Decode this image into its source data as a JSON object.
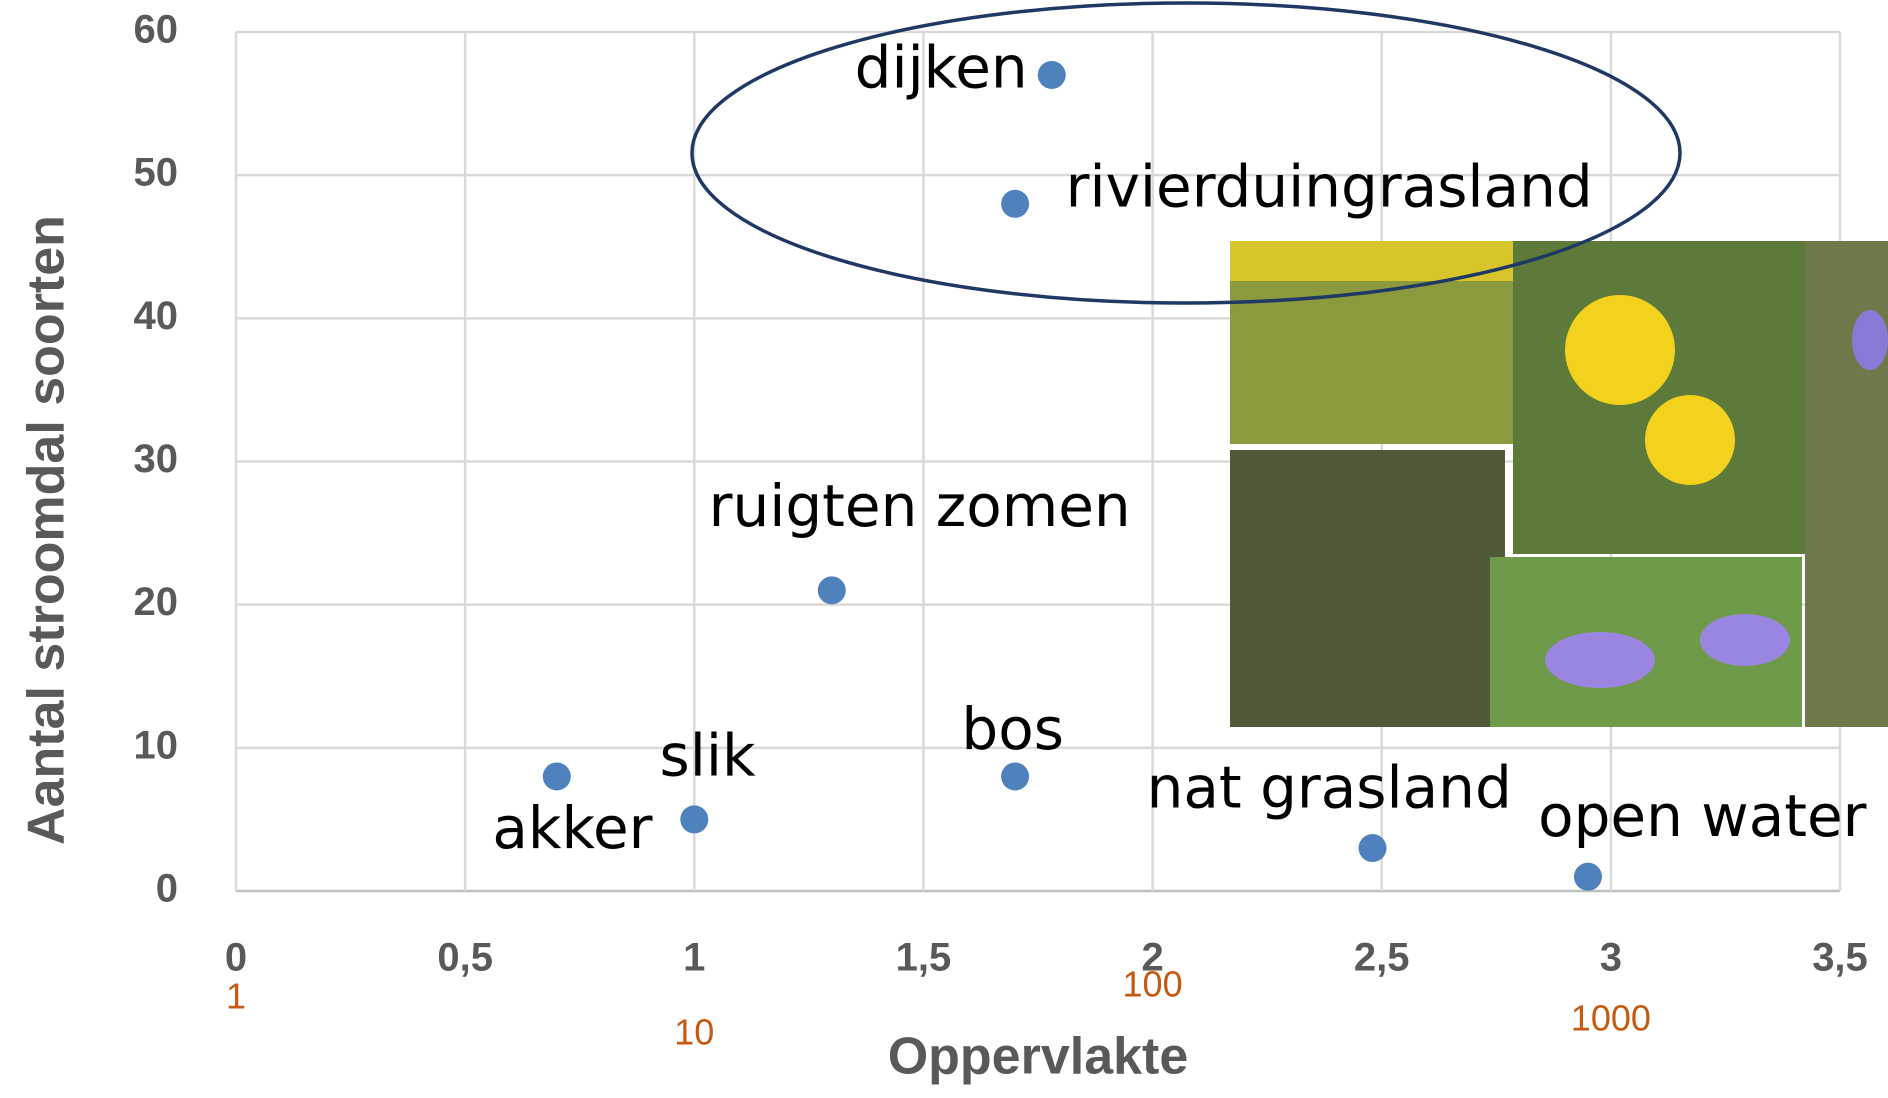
{
  "chart_data": {
    "type": "scatter",
    "x_label": "Oppervlakte",
    "y_label": "Aantal stroomdal soorten",
    "x": [
      0.7,
      1.0,
      1.3,
      1.7,
      1.78,
      1.7,
      2.48,
      2.95
    ],
    "values": [
      8,
      5,
      21,
      8,
      57,
      48,
      3,
      1
    ],
    "labels": [
      "akker",
      "slik",
      "ruigten zomen",
      "bos",
      "dijken",
      "rivierduingrasland",
      "nat grasland",
      "open water"
    ],
    "color": "#4f81bd",
    "xlim": [
      0,
      3.5
    ],
    "xticks": [
      0,
      {
        "value": 0.5,
        "label": "0,5"
      },
      1,
      {
        "value": 1.5,
        "label": "1,5"
      },
      2,
      {
        "value": 2.5,
        "label": "2,5"
      },
      3,
      {
        "value": 3.5,
        "label": "3,5"
      }
    ],
    "ylim": [
      0,
      60
    ],
    "yticks": [
      0,
      10,
      20,
      30,
      40,
      50,
      60
    ],
    "grid": true,
    "secondary_xlabels": [
      {
        "value": 0,
        "label": "1"
      },
      {
        "value": 1,
        "label": "10"
      },
      {
        "value": 2,
        "label": "100"
      },
      {
        "value": 3,
        "label": "1000"
      }
    ],
    "secondary_color": "#c55a11"
  }
}
